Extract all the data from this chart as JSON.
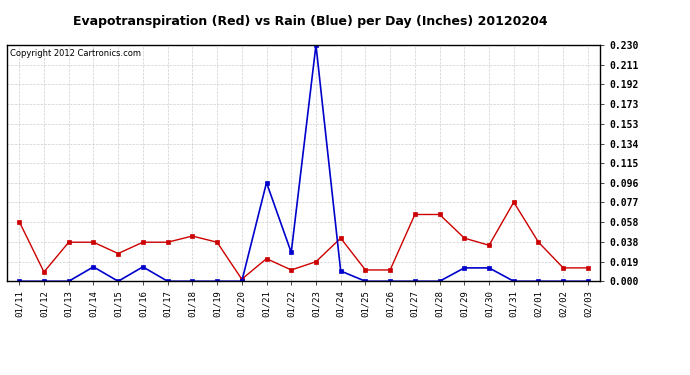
{
  "title": "Evapotranspiration (Red) vs Rain (Blue) per Day (Inches) 20120204",
  "copyright": "Copyright 2012 Cartronics.com",
  "dates": [
    "01/11\n0",
    "01/12\n0",
    "01/13\n0",
    "01/14\n0",
    "01/15\n0",
    "01/16\n0",
    "01/17\n0",
    "01/18\n0",
    "01/19\n0",
    "01/20\n0",
    "01/21\n0",
    "01/22\n0",
    "01/23\n0",
    "01/24\n0",
    "01/25\n0",
    "01/26\n0",
    "01/27\n0",
    "01/28\n0",
    "01/29\n0",
    "01/30\n0",
    "01/31\n0",
    "02/01\n0",
    "02/02\n0",
    "02/03\n0"
  ],
  "dates_clean": [
    "01/11",
    "01/12",
    "01/13",
    "01/14",
    "01/15",
    "01/16",
    "01/17",
    "01/18",
    "01/19",
    "01/20",
    "01/21",
    "01/22",
    "01/23",
    "01/24",
    "01/25",
    "01/26",
    "01/27",
    "01/28",
    "01/29",
    "01/30",
    "01/31",
    "02/01",
    "02/02",
    "02/03"
  ],
  "red_et": [
    0.058,
    0.009,
    0.038,
    0.038,
    0.027,
    0.038,
    0.038,
    0.044,
    0.038,
    0.002,
    0.022,
    0.011,
    0.019,
    0.042,
    0.011,
    0.011,
    0.065,
    0.065,
    0.042,
    0.035,
    0.077,
    0.038,
    0.013,
    0.013
  ],
  "blue_rain": [
    0.0,
    0.0,
    0.0,
    0.014,
    0.0,
    0.014,
    0.0,
    0.0,
    0.0,
    0.0,
    0.096,
    0.028,
    0.23,
    0.01,
    0.0,
    0.0,
    0.0,
    0.0,
    0.013,
    0.013,
    0.0,
    0.0,
    0.0,
    0.0
  ],
  "red_color": "#cc0000",
  "blue_color": "#0000cc",
  "bg_color": "#ffffff",
  "grid_color": "#bbbbbb",
  "ylim": [
    0.0,
    0.23
  ],
  "yticks": [
    0.0,
    0.019,
    0.038,
    0.058,
    0.077,
    0.096,
    0.115,
    0.134,
    0.153,
    0.173,
    0.192,
    0.211,
    0.23
  ]
}
